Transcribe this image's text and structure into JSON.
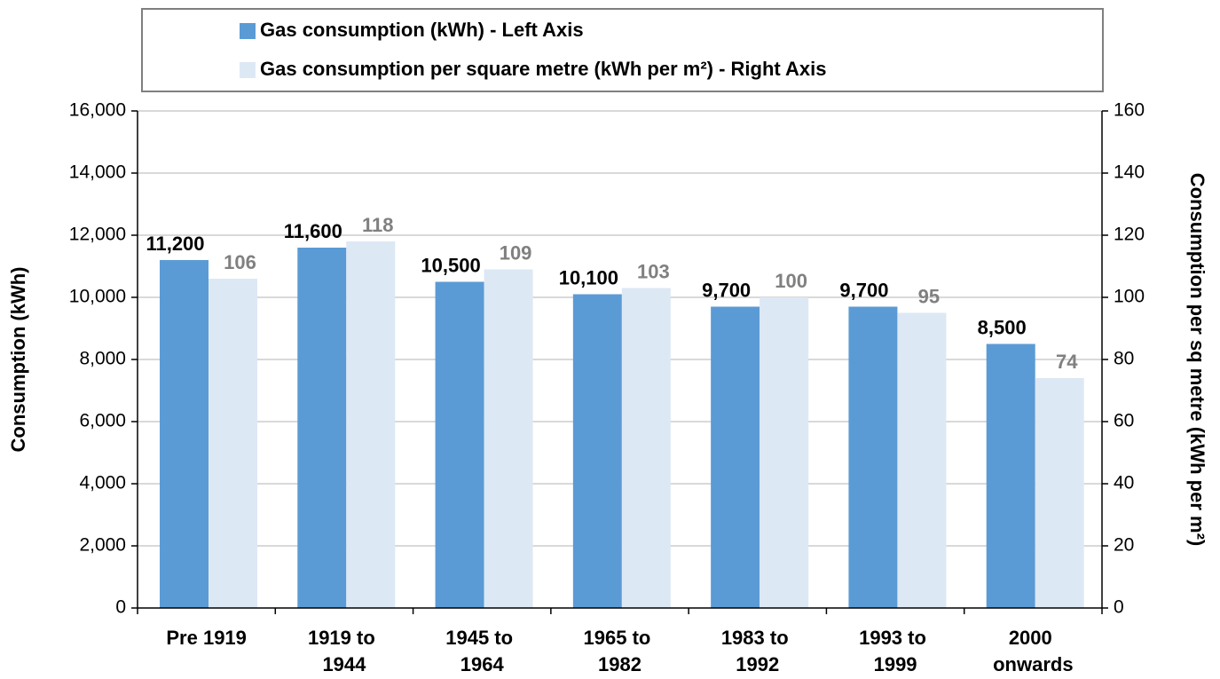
{
  "chart_data": {
    "type": "bar",
    "categories": [
      "Pre 1919",
      "1919 to 1944",
      "1945 to 1964",
      "1965 to 1982",
      "1983 to 1992",
      "1993 to 1999",
      "2000 onwards"
    ],
    "series": [
      {
        "name": "Gas consumption (kWh) - Left Axis",
        "color": "#5b9bd5",
        "values": [
          11200,
          11600,
          10500,
          10100,
          9700,
          9700,
          8500
        ],
        "value_labels": [
          "11,200",
          "11,600",
          "10,500",
          "10,100",
          "9,700",
          "9,700",
          "8,500"
        ]
      },
      {
        "name": "Gas consumption per square metre (kWh per m²) - Right Axis",
        "color": "#dde8f5",
        "axis": "y2",
        "values": [
          106,
          118,
          109,
          103,
          100,
          95,
          74
        ]
      }
    ],
    "y_label": "Consumption (kWh)",
    "y2_label": "Consumption per sq metre (kWh per m²)",
    "ylim": [
      0,
      16000
    ],
    "yticks": [
      0,
      {
        "value": 2000,
        "label": "2,000"
      },
      {
        "value": 4000,
        "label": "4,000"
      },
      {
        "value": 6000,
        "label": "6,000"
      },
      {
        "value": 8000,
        "label": "8,000"
      },
      {
        "value": 10000,
        "label": "10,000"
      },
      {
        "value": 12000,
        "label": "12,000"
      },
      {
        "value": 14000,
        "label": "14,000"
      },
      {
        "value": 16000,
        "label": "16,000"
      }
    ],
    "y2lim": [
      0,
      160
    ],
    "y2ticks": [
      0,
      20,
      40,
      60,
      80,
      100,
      120,
      140,
      160
    ],
    "grid": true,
    "legend": "top"
  }
}
